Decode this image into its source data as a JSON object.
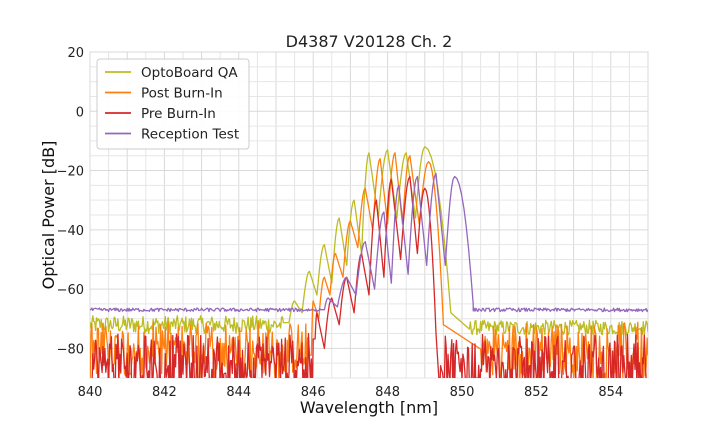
{
  "chart_data": {
    "type": "line",
    "title": "D4387 V20128 Ch. 2",
    "xlabel": "Wavelength [nm]",
    "ylabel": "Optical Power [dB]",
    "xlim": [
      840,
      855
    ],
    "ylim": [
      -90,
      20
    ],
    "xticks": [
      840,
      842,
      844,
      846,
      848,
      850,
      852,
      854
    ],
    "xtick_labels": [
      "840",
      "842",
      "844",
      "846",
      "848",
      "850",
      "852",
      "854"
    ],
    "yticks": [
      20,
      0,
      -20,
      -40,
      -60,
      -80
    ],
    "ytick_labels": [
      "20",
      "0",
      "−20",
      "−40",
      "−60",
      "−80"
    ],
    "grid": true,
    "legend_position": "top-left",
    "series": [
      {
        "name": "OptoBoard QA",
        "color": "#bcbd22",
        "noise": {
          "x_from": 840,
          "x_to": 845.2,
          "level": -72,
          "amp": 3,
          "x2_from": 850.2,
          "x2_to": 855,
          "level2": -73,
          "amp2": 2.5
        },
        "peaks": [
          {
            "x": 845.5,
            "y": -64
          },
          {
            "x": 845.9,
            "y": -54
          },
          {
            "x": 846.3,
            "y": -45
          },
          {
            "x": 846.7,
            "y": -36
          },
          {
            "x": 847.1,
            "y": -30
          },
          {
            "x": 847.5,
            "y": -14
          },
          {
            "x": 848.0,
            "y": -13
          },
          {
            "x": 848.5,
            "y": -14
          },
          {
            "x": 849.0,
            "y": -12
          }
        ],
        "valleys": [
          -68,
          -62,
          -58,
          -52,
          -48,
          -36,
          -36,
          -36
        ],
        "edge_left": 845.2,
        "edge_right": 849.7,
        "tail_level": -68
      },
      {
        "name": "Post Burn-In",
        "color": "#ff7f0e",
        "noise": {
          "x_from": 840,
          "x_to": 845.9,
          "level": -80,
          "amp": 9,
          "x2_from": 850.5,
          "x2_to": 855,
          "level2": -80,
          "amp2": 9
        },
        "peaks": [
          {
            "x": 846.0,
            "y": -64
          },
          {
            "x": 846.3,
            "y": -56
          },
          {
            "x": 846.6,
            "y": -48
          },
          {
            "x": 847.0,
            "y": -37
          },
          {
            "x": 847.4,
            "y": -26
          },
          {
            "x": 847.8,
            "y": -16
          },
          {
            "x": 848.2,
            "y": -14
          },
          {
            "x": 848.6,
            "y": -15
          },
          {
            "x": 849.1,
            "y": -17
          }
        ],
        "valleys": [
          -70,
          -62,
          -56,
          -46,
          -40,
          -38,
          -38,
          -38
        ],
        "edge_left": 845.9,
        "edge_right": 849.5,
        "tail_level": -72
      },
      {
        "name": "Pre Burn-In",
        "color": "#d62728",
        "noise": {
          "x_from": 840,
          "x_to": 846.0,
          "level": -85,
          "amp": 10,
          "x2_from": 849.4,
          "x2_to": 855,
          "level2": -85,
          "amp2": 10
        },
        "peaks": [
          {
            "x": 846.1,
            "y": -68
          },
          {
            "x": 846.5,
            "y": -63
          },
          {
            "x": 846.9,
            "y": -56
          },
          {
            "x": 847.3,
            "y": -48
          },
          {
            "x": 847.7,
            "y": -30
          },
          {
            "x": 848.1,
            "y": -23
          },
          {
            "x": 848.6,
            "y": -22
          },
          {
            "x": 849.0,
            "y": -26
          }
        ],
        "valleys": [
          -80,
          -72,
          -68,
          -62,
          -56,
          -50,
          -48
        ],
        "edge_left": 846.0,
        "edge_right": 849.3,
        "tail_level": -75
      },
      {
        "name": "Reception Test",
        "color": "#9467bd",
        "noise": {
          "x_from": 840,
          "x_to": 846.2,
          "level": -67,
          "amp": 0.6,
          "x2_from": 850.3,
          "x2_to": 855,
          "level2": -67,
          "amp2": 0.6
        },
        "peaks": [
          {
            "x": 846.4,
            "y": -63
          },
          {
            "x": 846.9,
            "y": -56
          },
          {
            "x": 847.4,
            "y": -44
          },
          {
            "x": 847.9,
            "y": -34
          },
          {
            "x": 848.3,
            "y": -25
          },
          {
            "x": 848.8,
            "y": -22
          },
          {
            "x": 849.3,
            "y": -21
          },
          {
            "x": 849.8,
            "y": -22
          }
        ],
        "valleys": [
          -66,
          -62,
          -60,
          -58,
          -55,
          -52,
          -52
        ],
        "edge_left": 846.2,
        "edge_right": 850.3,
        "tail_level": -65
      }
    ]
  }
}
